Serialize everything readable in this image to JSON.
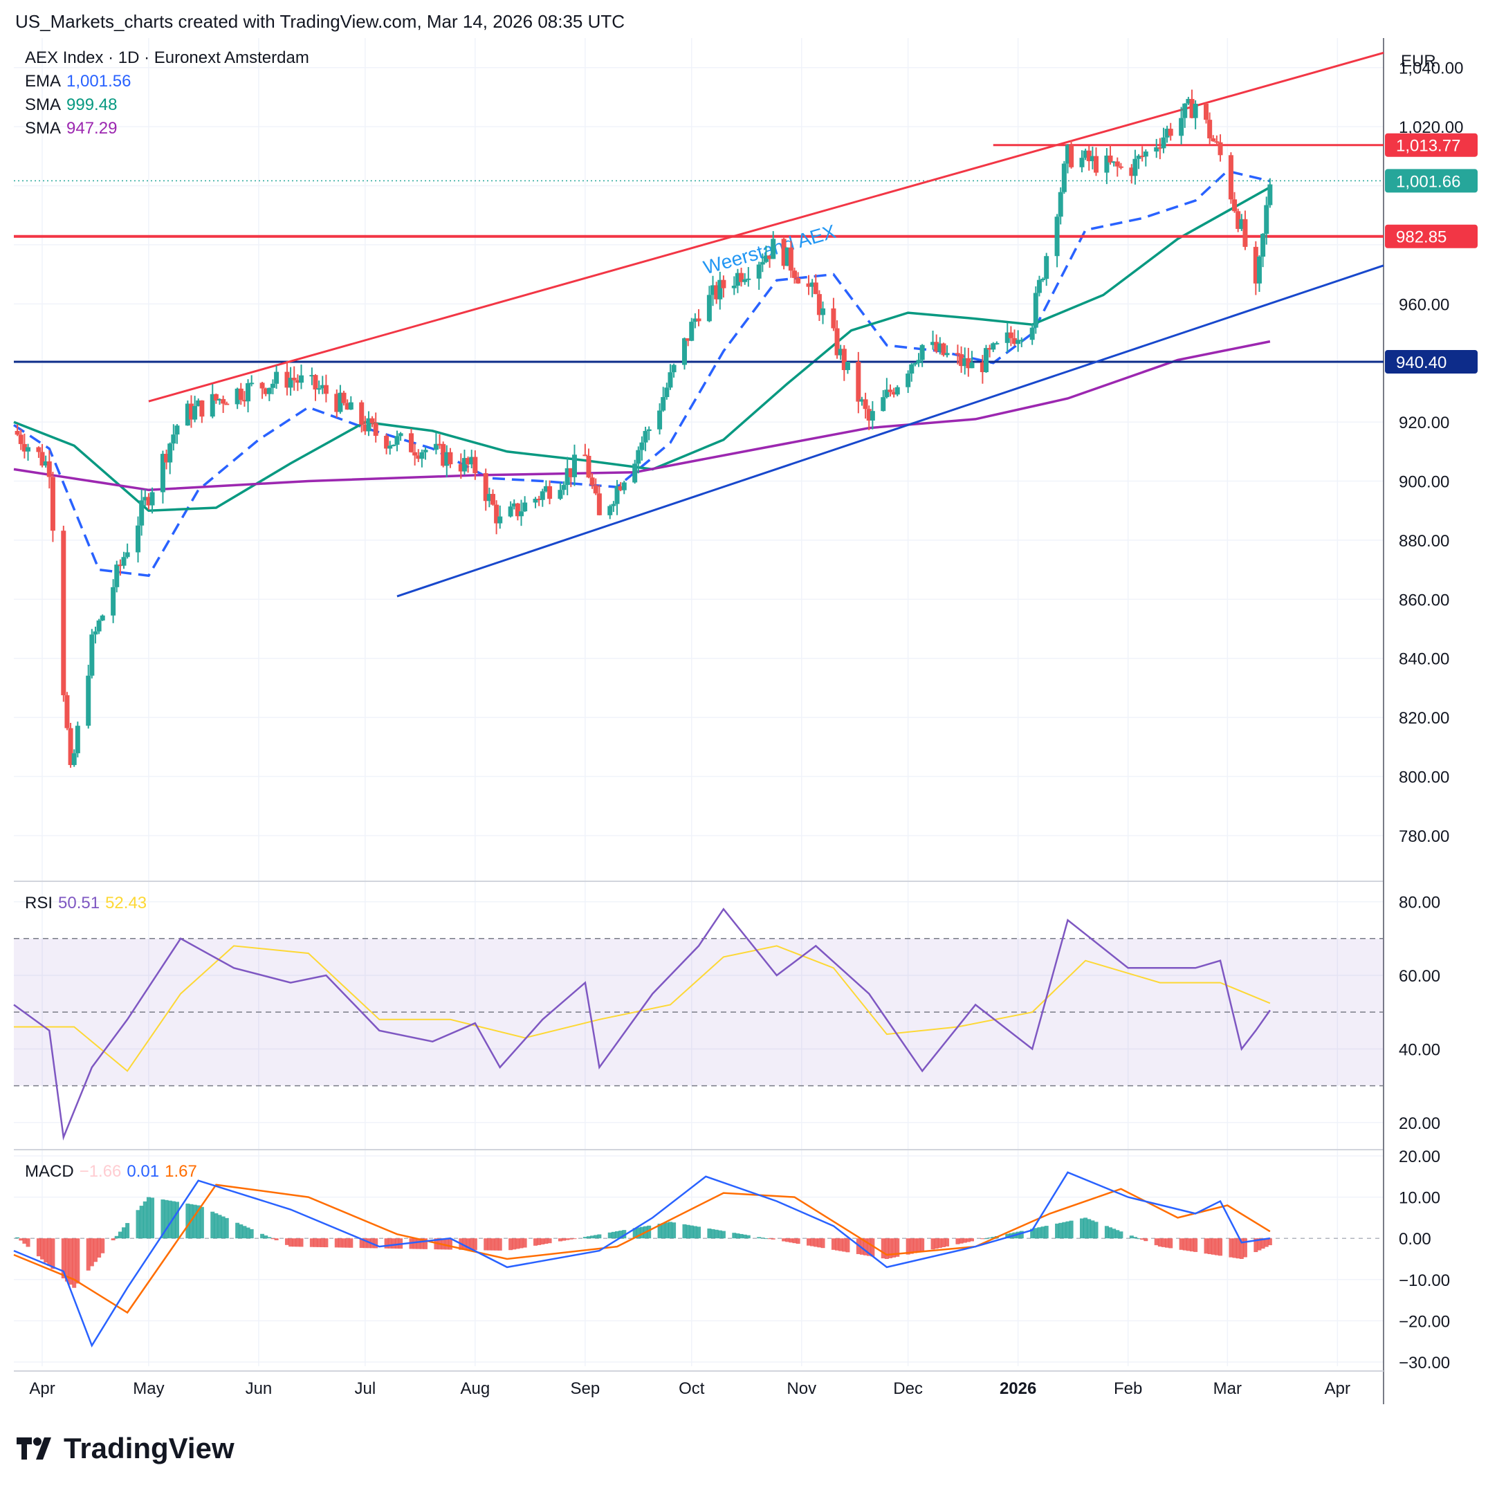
{
  "header": {
    "caption": "US_Markets_charts created with TradingView.com, Mar 14, 2026 08:35 UTC"
  },
  "legend": {
    "symbol": "AEX Index · 1D · Euronext Amsterdam",
    "ema_label": "EMA",
    "ema_value": "1,001.56",
    "sma1_label": "SMA",
    "sma1_value": "999.48",
    "sma2_label": "SMA",
    "sma2_value": "947.29",
    "rsi_label": "RSI",
    "rsi_value": "50.51",
    "rsi_ma_value": "52.43",
    "macd_label": "MACD",
    "macd_hist": "−1.66",
    "macd_value": "0.01",
    "macd_signal": "1.67"
  },
  "axis": {
    "currency": "EUR",
    "price_ticks": [
      "1,040.00",
      "1,020.00",
      "960.00",
      "920.00",
      "900.00",
      "880.00",
      "860.00",
      "840.00",
      "820.00",
      "800.00",
      "780.00"
    ],
    "rsi_ticks": [
      "80.00",
      "60.00",
      "40.00",
      "20.00"
    ],
    "macd_ticks": [
      "20.00",
      "10.00",
      "0.00",
      "−10.00",
      "−20.00",
      "−30.00"
    ],
    "months": [
      "Apr",
      "May",
      "Jun",
      "Jul",
      "Aug",
      "Sep",
      "Oct",
      "Nov",
      "Dec",
      "2026",
      "Feb",
      "Mar",
      "Apr"
    ]
  },
  "price_tags": {
    "resistance_high": "1,013.77",
    "last_price": "1,001.66",
    "resistance_mid": "982.85",
    "support": "940.40"
  },
  "annotation": "Weerstand AEX",
  "colors": {
    "up": "#26a69a",
    "down": "#ef5350",
    "ema": "#2962ff",
    "sma50": "#089981",
    "sma200": "#9c27b0",
    "resistance": "#f23645",
    "support_line": "#1848cc",
    "horizontal_support": "#0d2c8a",
    "rsi": "#7e57c2",
    "rsi_ma": "#fdd835",
    "macd": "#2962ff",
    "signal": "#ff6d00"
  },
  "chart_data": [
    {
      "type": "candlestick",
      "title": "AEX Index · 1D · Euronext Amsterdam",
      "x_range": [
        "2025-03-24",
        "2026-04-14"
      ],
      "ylim": [
        765,
        1050
      ],
      "series": [
        {
          "name": "EMA",
          "x": [
            "2025-03-24",
            "2025-04-03",
            "2025-04-17",
            "2025-05-01",
            "2025-05-15",
            "2025-06-01",
            "2025-06-15",
            "2025-07-01",
            "2025-07-20",
            "2025-08-05",
            "2025-08-20",
            "2025-09-10",
            "2025-09-25",
            "2025-10-10",
            "2025-10-25",
            "2025-11-10",
            "2025-11-25",
            "2025-12-10",
            "2025-12-25",
            "2026-01-05",
            "2026-01-20",
            "2026-02-05",
            "2026-02-20",
            "2026-03-01",
            "2026-03-13"
          ],
          "values": [
            919,
            911,
            870,
            868,
            897,
            914,
            925,
            918,
            911,
            901,
            900,
            898,
            913,
            944,
            968,
            970,
            946,
            944,
            940,
            950,
            985,
            989,
            995,
            1005,
            1001.56
          ]
        },
        {
          "name": "SMA",
          "x": [
            "2025-03-24",
            "2025-04-10",
            "2025-05-01",
            "2025-05-20",
            "2025-06-10",
            "2025-07-01",
            "2025-07-20",
            "2025-08-10",
            "2025-09-01",
            "2025-09-20",
            "2025-10-10",
            "2025-10-28",
            "2025-11-15",
            "2025-12-01",
            "2025-12-20",
            "2026-01-05",
            "2026-01-25",
            "2026-02-15",
            "2026-03-13"
          ],
          "values": [
            920,
            912,
            890,
            891,
            906,
            920,
            917,
            910,
            907,
            904,
            914,
            933,
            951,
            957,
            955,
            953,
            963,
            982,
            999.48
          ]
        },
        {
          "name": "SMA",
          "x": [
            "2025-03-24",
            "2025-05-01",
            "2025-06-15",
            "2025-08-01",
            "2025-09-15",
            "2025-10-20",
            "2025-11-20",
            "2025-12-20",
            "2026-01-15",
            "2026-02-15",
            "2026-03-13"
          ],
          "values": [
            904,
            897,
            900,
            902,
            903,
            911,
            918,
            921,
            928,
            941,
            947.29
          ]
        }
      ],
      "horizontal_lines": [
        1013.77,
        982.85,
        940.4
      ],
      "trendlines": [
        {
          "name": "Weerstand AEX",
          "from": [
            "2025-05-01",
            927
          ],
          "to": [
            "2026-04-14",
            1045
          ]
        },
        {
          "from": [
            "2025-07-10",
            861
          ],
          "to": [
            "2026-04-14",
            973
          ]
        }
      ],
      "approx_ohlc_path": {
        "x": [
          "2025-03-24",
          "2025-04-03",
          "2025-04-07",
          "2025-04-09",
          "2025-04-15",
          "2025-04-25",
          "2025-05-10",
          "2025-05-25",
          "2025-06-10",
          "2025-06-20",
          "2025-07-05",
          "2025-07-20",
          "2025-08-01",
          "2025-08-08",
          "2025-08-20",
          "2025-09-01",
          "2025-09-05",
          "2025-09-20",
          "2025-10-03",
          "2025-10-10",
          "2025-10-25",
          "2025-11-05",
          "2025-11-20",
          "2025-12-05",
          "2025-12-20",
          "2026-01-05",
          "2026-01-15",
          "2026-02-01",
          "2026-02-20",
          "2026-02-27",
          "2026-03-05",
          "2026-03-09",
          "2026-03-13"
        ],
        "close": [
          917,
          905,
          830,
          800,
          845,
          878,
          922,
          930,
          935,
          930,
          915,
          910,
          904,
          886,
          896,
          908,
          887,
          920,
          958,
          966,
          980,
          962,
          920,
          946,
          938,
          955,
          1010,
          1005,
          1028,
          1010,
          985,
          963,
          1001.66
        ]
      }
    },
    {
      "type": "line",
      "title": "RSI",
      "ylim": [
        13,
        85
      ],
      "bands": [
        30,
        50,
        70
      ],
      "series": [
        {
          "name": "RSI",
          "x": [
            "2025-03-24",
            "2025-04-03",
            "2025-04-07",
            "2025-04-15",
            "2025-04-25",
            "2025-05-10",
            "2025-05-25",
            "2025-06-10",
            "2025-06-20",
            "2025-07-05",
            "2025-07-20",
            "2025-08-01",
            "2025-08-08",
            "2025-08-20",
            "2025-09-01",
            "2025-09-05",
            "2025-09-20",
            "2025-10-03",
            "2025-10-10",
            "2025-10-25",
            "2025-11-05",
            "2025-11-20",
            "2025-12-05",
            "2025-12-20",
            "2026-01-05",
            "2026-01-15",
            "2026-02-01",
            "2026-02-20",
            "2026-02-27",
            "2026-03-05",
            "2026-03-09",
            "2026-03-13"
          ],
          "values": [
            52,
            45,
            16,
            35,
            48,
            70,
            62,
            58,
            60,
            45,
            42,
            47,
            35,
            48,
            58,
            35,
            55,
            68,
            78,
            60,
            68,
            55,
            34,
            52,
            40,
            75,
            62,
            62,
            64,
            40,
            45,
            50.51
          ]
        },
        {
          "name": "MA",
          "x": [
            "2025-03-24",
            "2025-04-10",
            "2025-04-25",
            "2025-05-10",
            "2025-05-25",
            "2025-06-15",
            "2025-07-05",
            "2025-07-25",
            "2025-08-15",
            "2025-09-05",
            "2025-09-25",
            "2025-10-10",
            "2025-10-25",
            "2025-11-10",
            "2025-11-25",
            "2025-12-15",
            "2026-01-05",
            "2026-01-20",
            "2026-02-10",
            "2026-02-27",
            "2026-03-13"
          ],
          "values": [
            46,
            46,
            34,
            55,
            68,
            66,
            48,
            48,
            43,
            48,
            52,
            65,
            68,
            62,
            44,
            46,
            50,
            64,
            58,
            58,
            52.43
          ]
        }
      ]
    },
    {
      "type": "line",
      "title": "MACD",
      "ylim": [
        -31,
        21
      ],
      "series": [
        {
          "name": "MACD",
          "x": [
            "2025-03-24",
            "2025-04-07",
            "2025-04-15",
            "2025-04-25",
            "2025-05-15",
            "2025-06-10",
            "2025-07-05",
            "2025-07-25",
            "2025-08-10",
            "2025-09-05",
            "2025-09-20",
            "2025-10-05",
            "2025-10-25",
            "2025-11-10",
            "2025-11-25",
            "2025-12-20",
            "2026-01-05",
            "2026-01-15",
            "2026-02-01",
            "2026-02-20",
            "2026-02-27",
            "2026-03-05",
            "2026-03-13"
          ],
          "values": [
            -3,
            -8,
            -26,
            -12,
            14,
            7,
            -2,
            0,
            -7,
            -3,
            5,
            15,
            9,
            3,
            -7,
            -2,
            2,
            16,
            10,
            6,
            9,
            -1,
            0.01
          ]
        },
        {
          "name": "Signal",
          "x": [
            "2025-03-24",
            "2025-04-10",
            "2025-04-25",
            "2025-05-20",
            "2025-06-15",
            "2025-07-10",
            "2025-08-10",
            "2025-09-10",
            "2025-10-10",
            "2025-10-30",
            "2025-11-25",
            "2025-12-20",
            "2026-01-10",
            "2026-01-30",
            "2026-02-15",
            "2026-03-01",
            "2026-03-13"
          ],
          "values": [
            -4,
            -10,
            -18,
            13,
            10,
            1,
            -5,
            -2,
            11,
            10,
            -4,
            -2,
            6,
            12,
            5,
            8,
            1.67
          ]
        },
        {
          "name": "Histogram",
          "x": [
            "2025-04-10",
            "2025-05-01",
            "2025-05-15",
            "2025-06-10",
            "2025-08-10",
            "2025-09-25",
            "2025-11-25",
            "2026-01-20",
            "2026-02-10",
            "2026-03-05",
            "2026-03-13"
          ],
          "values": [
            -12,
            10,
            8,
            -2,
            -3,
            4,
            -5,
            5,
            -2,
            -5,
            -1.66
          ]
        }
      ]
    }
  ]
}
